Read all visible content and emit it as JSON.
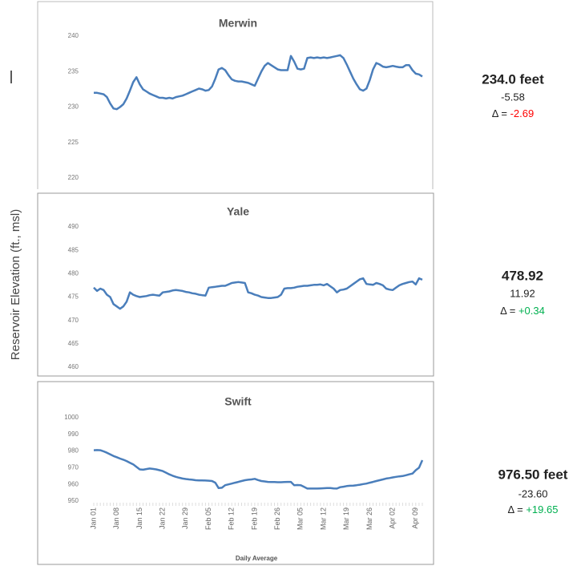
{
  "ylabel": "Reservoir Elevation (ft., msl)",
  "chart_data": [
    {
      "type": "line",
      "title": "Merwin",
      "color": "#4a7ebb",
      "ylim": [
        220,
        240
      ],
      "yticks": [
        220,
        225,
        230,
        235,
        240
      ],
      "values": [
        232.0,
        232.0,
        231.9,
        231.8,
        231.4,
        230.5,
        229.8,
        229.7,
        230.0,
        230.4,
        231.2,
        232.3,
        233.5,
        234.2,
        233.2,
        232.5,
        232.2,
        231.9,
        231.7,
        231.5,
        231.3,
        231.3,
        231.2,
        231.3,
        231.2,
        231.4,
        231.5,
        231.6,
        231.8,
        232.0,
        232.2,
        232.4,
        232.6,
        232.5,
        232.3,
        232.4,
        232.9,
        234.0,
        235.3,
        235.5,
        235.2,
        234.5,
        233.9,
        233.7,
        233.6,
        233.6,
        233.5,
        233.4,
        233.2,
        233.0,
        234.0,
        235.0,
        235.8,
        236.2,
        235.9,
        235.6,
        235.3,
        235.2,
        235.2,
        235.2,
        237.2,
        236.4,
        235.4,
        235.3,
        235.4,
        236.9,
        237.0,
        236.9,
        237.0,
        236.9,
        237.0,
        236.9,
        237.0,
        237.1,
        237.2,
        237.3,
        236.9,
        236.0,
        235.0,
        234.0,
        233.2,
        232.5,
        232.3,
        232.6,
        233.8,
        235.3,
        236.2,
        236.0,
        235.7,
        235.6,
        235.7,
        235.8,
        235.7,
        235.6,
        235.6,
        235.9,
        235.9,
        235.2,
        234.7,
        234.6,
        234.3
      ],
      "annotations": {
        "level": "234.0 feet",
        "change": "-5.58",
        "delta_label": "Δ = ",
        "delta": "-2.69",
        "delta_color": "#ff0000"
      }
    },
    {
      "type": "line",
      "title": "Yale",
      "color": "#4a7ebb",
      "ylim": [
        460,
        490
      ],
      "yticks": [
        460,
        465,
        470,
        475,
        480,
        485,
        490
      ],
      "values": [
        477.0,
        476.3,
        476.8,
        476.5,
        475.5,
        475.0,
        473.5,
        473.0,
        472.5,
        473.0,
        474.0,
        476.0,
        475.5,
        475.2,
        475.0,
        475.1,
        475.2,
        475.4,
        475.5,
        475.4,
        475.3,
        476.0,
        476.1,
        476.2,
        476.4,
        476.5,
        476.4,
        476.3,
        476.1,
        476.0,
        475.8,
        475.7,
        475.5,
        475.4,
        475.3,
        477.0,
        477.1,
        477.2,
        477.3,
        477.4,
        477.4,
        477.7,
        478.0,
        478.1,
        478.2,
        478.1,
        478.0,
        476.0,
        475.8,
        475.5,
        475.3,
        475.0,
        474.9,
        474.8,
        474.8,
        474.9,
        475.0,
        475.5,
        476.8,
        476.9,
        476.9,
        477.0,
        477.2,
        477.3,
        477.4,
        477.4,
        477.5,
        477.6,
        477.6,
        477.7,
        477.5,
        477.8,
        477.3,
        476.8,
        476.0,
        476.5,
        476.6,
        476.8,
        477.3,
        477.8,
        478.3,
        478.8,
        479.0,
        477.8,
        477.7,
        477.6,
        478.0,
        477.8,
        477.5,
        476.8,
        476.6,
        476.5,
        477.0,
        477.5,
        477.8,
        478.0,
        478.2,
        478.3,
        477.7,
        479.0,
        478.7
      ],
      "annotations": {
        "level": "478.92",
        "change": "11.92",
        "delta_label": "Δ = ",
        "delta": "+0.34",
        "delta_color": "#00b050"
      }
    },
    {
      "type": "line",
      "title": "Swift",
      "color": "#4a7ebb",
      "xlabel": "Daily Average",
      "ylim": [
        950,
        1000
      ],
      "yticks": [
        950,
        960,
        970,
        980,
        990,
        1000
      ],
      "categories": [
        "Jan 01",
        null,
        null,
        null,
        null,
        null,
        null,
        "Jan 08",
        null,
        null,
        null,
        null,
        null,
        null,
        "Jan 15",
        null,
        null,
        null,
        null,
        null,
        null,
        "Jan 22",
        null,
        null,
        null,
        null,
        null,
        null,
        "Jan 29",
        null,
        null,
        null,
        null,
        null,
        null,
        "Feb 05",
        null,
        null,
        null,
        null,
        null,
        null,
        "Feb 12",
        null,
        null,
        null,
        null,
        null,
        null,
        "Feb 19",
        null,
        null,
        null,
        null,
        null,
        null,
        "Feb 26",
        null,
        null,
        null,
        null,
        null,
        null,
        "Mar 05",
        null,
        null,
        null,
        null,
        null,
        null,
        "Mar 12",
        null,
        null,
        null,
        null,
        null,
        null,
        "Mar 19",
        null,
        null,
        null,
        null,
        null,
        null,
        "Mar 26",
        null,
        null,
        null,
        null,
        null,
        null,
        "Apr 02",
        null,
        null,
        null,
        null,
        null,
        null,
        "Apr 09",
        null,
        null
      ],
      "values": [
        980.5,
        980.6,
        980.5,
        979.8,
        979.0,
        978.0,
        977.0,
        976.3,
        975.5,
        974.8,
        974.0,
        973.0,
        972.0,
        970.5,
        969.0,
        968.8,
        969.2,
        969.5,
        969.3,
        969.0,
        968.5,
        968.0,
        967.0,
        966.0,
        965.2,
        964.5,
        964.0,
        963.5,
        963.2,
        963.0,
        962.8,
        962.5,
        962.4,
        962.4,
        962.3,
        962.2,
        962.0,
        961.0,
        957.8,
        958.0,
        959.5,
        960.0,
        960.5,
        961.0,
        961.5,
        962.0,
        962.5,
        962.8,
        963.0,
        963.3,
        962.6,
        962.0,
        961.8,
        961.5,
        961.4,
        961.4,
        961.3,
        961.3,
        961.4,
        961.5,
        961.5,
        959.5,
        959.6,
        959.5,
        958.5,
        957.5,
        957.5,
        957.5,
        957.5,
        957.6,
        957.7,
        957.8,
        957.8,
        957.6,
        957.5,
        958.3,
        958.6,
        959.0,
        959.2,
        959.3,
        959.5,
        959.8,
        960.2,
        960.5,
        961.0,
        961.5,
        962.0,
        962.5,
        963.0,
        963.5,
        963.8,
        964.2,
        964.5,
        964.8,
        965.0,
        965.5,
        966.0,
        966.5,
        968.5,
        970.0,
        974.5
      ],
      "annotations": {
        "level": "976.50 feet",
        "change": "-23.60",
        "delta_label": "Δ = ",
        "delta": "+19.65",
        "delta_color": "#00b050"
      }
    }
  ]
}
